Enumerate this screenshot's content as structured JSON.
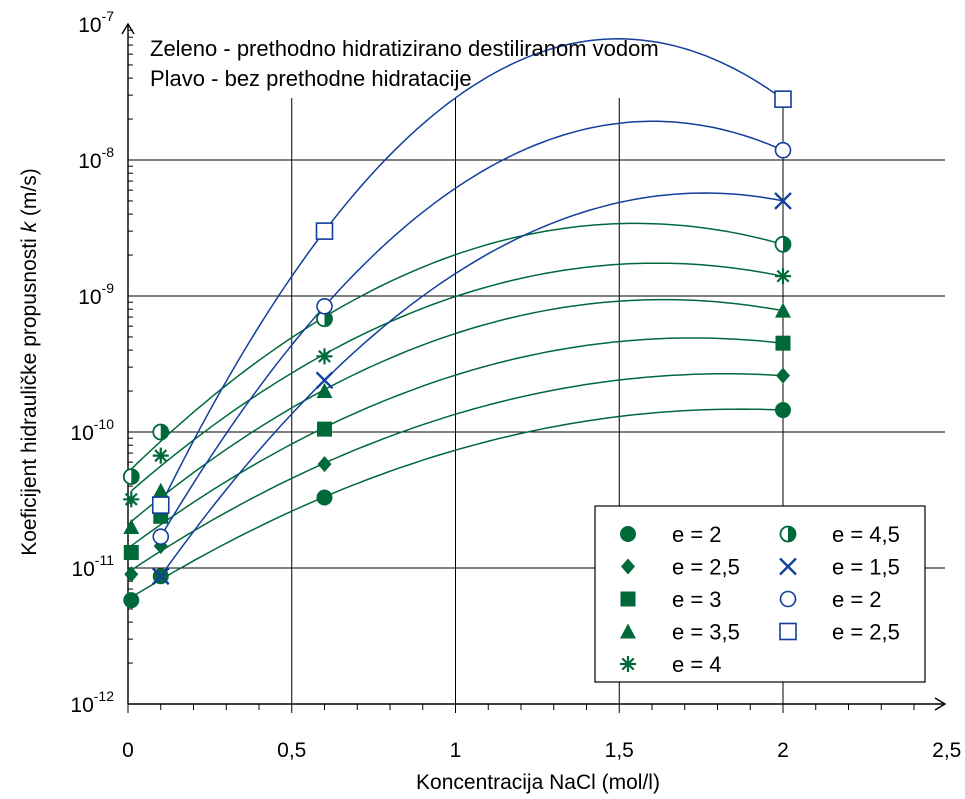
{
  "colors": {
    "green": "#00693a",
    "blue": "#123f9c",
    "axis": "#000000"
  },
  "chart_data": {
    "type": "scatter",
    "title": "",
    "xlabel": "Koncentracija NaCl (mol/l)",
    "ylabel_prefix": "Koeficijent hidrauličke propusnosti ",
    "ylabel_var": "k",
    "ylabel_suffix": " (m/s)",
    "xlim": [
      0,
      2.5
    ],
    "ylim_exp": [
      -12,
      -7
    ],
    "y_scale": "log",
    "grid": true,
    "x_ticks": [
      {
        "v": 0,
        "label": "0"
      },
      {
        "v": 0.5,
        "label": "0,5"
      },
      {
        "v": 1,
        "label": "1"
      },
      {
        "v": 1.5,
        "label": "1,5"
      },
      {
        "v": 2,
        "label": "2"
      },
      {
        "v": 2.5,
        "label": "2,5"
      }
    ],
    "y_ticks": [
      {
        "e": -12,
        "base": "10",
        "exp": "-12"
      },
      {
        "e": -11,
        "base": "10",
        "exp": "-11"
      },
      {
        "e": -10,
        "base": "10",
        "exp": "-10"
      },
      {
        "e": -9,
        "base": "10",
        "exp": "-9"
      },
      {
        "e": -8,
        "base": "10",
        "exp": "-8"
      },
      {
        "e": -7,
        "base": "10",
        "exp": "-7"
      }
    ],
    "annotations": [
      "Zeleno - prethodno hidratizirano destiliranom vodom",
      "Plavo - bez prethodne hidratacije"
    ],
    "legend_position": "bottom-right",
    "series": [
      {
        "name": "e = 2",
        "color": "green",
        "marker": "circle",
        "x": [
          0.01,
          0.1,
          0.6,
          2.0
        ],
        "y": [
          5.8e-12,
          8.7e-12,
          3.3e-11,
          1.45e-10
        ]
      },
      {
        "name": "e = 2,5",
        "color": "green",
        "marker": "diamond",
        "x": [
          0.01,
          0.1,
          0.6,
          2.0
        ],
        "y": [
          9e-12,
          1.45e-11,
          5.8e-11,
          2.6e-10
        ]
      },
      {
        "name": "e = 3",
        "color": "green",
        "marker": "square",
        "x": [
          0.01,
          0.1,
          0.6,
          2.0
        ],
        "y": [
          1.3e-11,
          2.4e-11,
          1.05e-10,
          4.5e-10
        ]
      },
      {
        "name": "e = 3,5",
        "color": "green",
        "marker": "triangle",
        "x": [
          0.01,
          0.1,
          0.6,
          2.0
        ],
        "y": [
          2e-11,
          3.7e-11,
          2e-10,
          7.8e-10
        ]
      },
      {
        "name": "e = 4",
        "color": "green",
        "marker": "asterisk",
        "x": [
          0.01,
          0.1,
          0.6,
          2.0
        ],
        "y": [
          3.2e-11,
          6.7e-11,
          3.6e-10,
          1.4e-09
        ]
      },
      {
        "name": "e = 4,5",
        "color": "green",
        "marker": "halfcircle",
        "x": [
          0.01,
          0.1,
          0.6,
          2.0
        ],
        "y": [
          4.7e-11,
          1e-10,
          6.8e-10,
          2.4e-09
        ]
      },
      {
        "name": "e = 1,5",
        "color": "blue",
        "marker": "x",
        "x": [
          0.1,
          0.6,
          2.0
        ],
        "y": [
          8.7e-12,
          2.4e-10,
          5e-09
        ]
      },
      {
        "name": "e = 2",
        "color": "blue",
        "marker": "opencircle",
        "x": [
          0.1,
          0.6,
          2.0
        ],
        "y": [
          1.7e-11,
          8.4e-10,
          1.18e-08
        ]
      },
      {
        "name": "e = 2,5",
        "color": "blue",
        "marker": "opensquare",
        "x": [
          0.1,
          0.6,
          2.0
        ],
        "y": [
          2.9e-11,
          3e-09,
          2.8e-08
        ]
      }
    ]
  }
}
